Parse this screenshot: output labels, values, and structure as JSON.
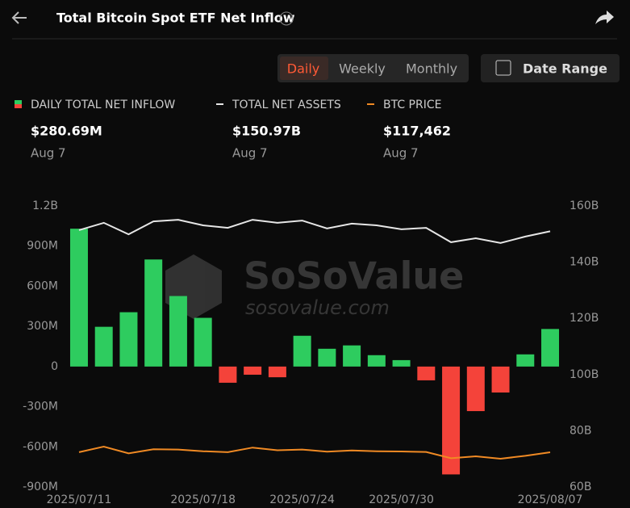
{
  "header": {
    "title": "Total Bitcoin Spot ETF Net Inflow",
    "tabs": [
      "Daily",
      "Weekly",
      "Monthly"
    ],
    "active_tab": 0,
    "date_range": "Date Range"
  },
  "watermark": {
    "brand": "SoSoValue",
    "url": "sosovalue.com"
  },
  "chart_data": {
    "type": "bar",
    "categories": [
      "2025/07/11",
      null,
      null,
      null,
      null,
      "2025/07/18",
      null,
      null,
      null,
      "2025/07/24",
      null,
      null,
      null,
      "2025/07/30",
      null,
      null,
      null,
      null,
      null,
      "2025/08/07"
    ],
    "series": [
      {
        "name": "DAILY TOTAL NET INFLOW",
        "type": "bar",
        "color": "#2ecc5f",
        "negative_color": "#f4433a",
        "values": [
          1030,
          297,
          406,
          800,
          527,
          364,
          -121,
          -61,
          -80,
          230,
          133,
          158,
          85,
          48,
          -103,
          -806,
          -333,
          -194,
          91,
          280.69
        ],
        "latest_label": "$280.69M",
        "latest_date": "Aug 7"
      },
      {
        "name": "TOTAL NET ASSETS",
        "type": "line",
        "axis": "y2",
        "color": "#e6e6e6",
        "values": [
          151.4,
          154.0,
          149.9,
          154.5,
          155.1,
          153.1,
          152.2,
          155.1,
          154.0,
          154.8,
          152.0,
          153.7,
          153.1,
          151.7,
          152.2,
          147.1,
          148.5,
          146.8,
          149.1,
          150.97
        ],
        "latest_label": "$150.97B",
        "latest_date": "Aug 7"
      },
      {
        "name": "BTC PRICE",
        "type": "line",
        "axis": "y3",
        "color": "#f08a24",
        "values": [
          117500,
          119800,
          117000,
          118700,
          118600,
          117900,
          117500,
          119400,
          118300,
          118600,
          117700,
          118200,
          117900,
          117800,
          117600,
          115000,
          115800,
          114800,
          116000,
          117462
        ],
        "latest_label": "$117,462",
        "latest_date": "Aug 7"
      }
    ],
    "ylim": [
      -900,
      1200
    ],
    "yticks": [
      {
        "value": -900,
        "label": "-900M"
      },
      {
        "value": -600,
        "label": "-600M"
      },
      {
        "value": -300,
        "label": "-300M"
      },
      0,
      {
        "value": 300,
        "label": "300M"
      },
      {
        "value": 600,
        "label": "600M"
      },
      {
        "value": 900,
        "label": "900M"
      },
      {
        "value": 1200,
        "label": "1.2B"
      }
    ],
    "y2lim": [
      60,
      160
    ],
    "y2ticks": [
      {
        "value": 60,
        "label": "60B"
      },
      {
        "value": 80,
        "label": "80B"
      },
      {
        "value": 100,
        "label": "100B"
      },
      {
        "value": 120,
        "label": "120B"
      },
      {
        "value": 140,
        "label": "140B"
      },
      {
        "value": 160,
        "label": "160B"
      }
    ],
    "grid": false
  }
}
